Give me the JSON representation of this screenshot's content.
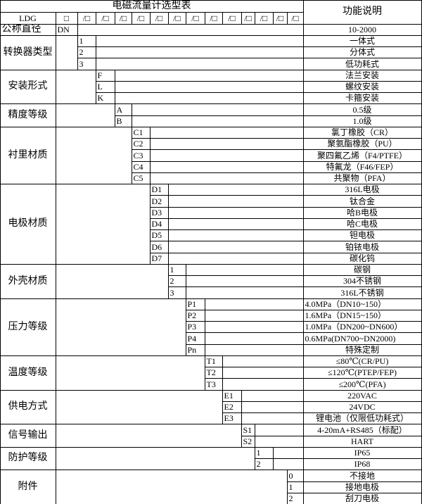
{
  "title": "电磁流量计选型表",
  "desc_header": "功能说明",
  "model_row": {
    "prefix": "LDG",
    "first_box": "□",
    "boxes": [
      "/□",
      "/□",
      "/□",
      "/□",
      "/□",
      "/□",
      "/□",
      "/□",
      "/□",
      "/□",
      "/□",
      "/□",
      "/□"
    ]
  },
  "nominal": {
    "label": "公称直径",
    "code": "DN",
    "desc": "10-2000"
  },
  "groups": [
    {
      "label": "转换器类型",
      "col": 2,
      "options": [
        {
          "code": "1",
          "desc": "一体式"
        },
        {
          "code": "2",
          "desc": "分体式"
        },
        {
          "code": "3",
          "desc": "低功耗式"
        }
      ]
    },
    {
      "label": "安装形式",
      "col": 3,
      "options": [
        {
          "code": "F",
          "desc": "法兰安装"
        },
        {
          "code": "L",
          "desc": "螺纹安装"
        },
        {
          "code": "K",
          "desc": "卡箍安装"
        }
      ]
    },
    {
      "label": "精度等级",
      "col": 4,
      "options": [
        {
          "code": "A",
          "desc": "0.5级"
        },
        {
          "code": "B",
          "desc": "1.0级"
        }
      ]
    },
    {
      "label": "衬里材质",
      "col": 5,
      "options": [
        {
          "code": "C1",
          "desc": "氯丁橡胶（CR）"
        },
        {
          "code": "C2",
          "desc": "聚氨酯橡胶（PU）"
        },
        {
          "code": "C3",
          "desc": "聚四氟乙烯（F4/PTFE）"
        },
        {
          "code": "C4",
          "desc": "特氟龙（F46/FEP）"
        },
        {
          "code": "C5",
          "desc": "共聚物（PFA）"
        }
      ]
    },
    {
      "label": "电极材质",
      "col": 6,
      "options": [
        {
          "code": "D1",
          "desc": "316L电极"
        },
        {
          "code": "D2",
          "desc": "钛合金"
        },
        {
          "code": "D3",
          "desc": "哈B电极"
        },
        {
          "code": "D4",
          "desc": "哈C电极"
        },
        {
          "code": "D5",
          "desc": "钽电极"
        },
        {
          "code": "D6",
          "desc": "铂铱电极"
        },
        {
          "code": "D7",
          "desc": "碳化钨"
        }
      ]
    },
    {
      "label": "外壳材质",
      "col": 7,
      "options": [
        {
          "code": "1",
          "desc": "碳钢"
        },
        {
          "code": "2",
          "desc": "304不锈钢"
        },
        {
          "code": "3",
          "desc": "316L不锈钢"
        }
      ]
    },
    {
      "label": "压力等级",
      "col": 8,
      "options": [
        {
          "code": "P1",
          "desc": "4.0MPa（DN10~150）"
        },
        {
          "code": "P2",
          "desc": "1.6MPa（DN15~150）"
        },
        {
          "code": "P3",
          "desc": "1.0MPa（DN200~DN600）"
        },
        {
          "code": "P4",
          "desc": "0.6MPa(DN700~DN2000)"
        },
        {
          "code": "Pn",
          "desc": "特殊定制"
        }
      ]
    },
    {
      "label": "温度等级",
      "col": 9,
      "options": [
        {
          "code": "T1",
          "desc": "≤80℃(CR/PU)"
        },
        {
          "code": "T2",
          "desc": "≤120℃(PTEP/FEP)"
        },
        {
          "code": "T3",
          "desc": "≤200℃(PFA)"
        }
      ]
    },
    {
      "label": "供电方式",
      "col": 10,
      "options": [
        {
          "code": "E1",
          "desc": "220VAC"
        },
        {
          "code": "E2",
          "desc": "24VDC"
        },
        {
          "code": "E3",
          "desc": "锂电池（仅限低功耗式）"
        }
      ]
    },
    {
      "label": "信号输出",
      "col": 11,
      "options": [
        {
          "code": "S1",
          "desc": "4-20mA+RS485（标配）"
        },
        {
          "code": "S2",
          "desc": "HART"
        }
      ]
    },
    {
      "label": "防护等级",
      "col": 12,
      "options": [
        {
          "code": "1",
          "desc": "IP65"
        },
        {
          "code": "2",
          "desc": "IP68"
        }
      ]
    },
    {
      "label": "附件",
      "col": 14,
      "options": [
        {
          "code": "0",
          "desc": "不接地"
        },
        {
          "code": "1",
          "desc": "接地电极"
        },
        {
          "code": "2",
          "desc": "刮刀电极"
        }
      ]
    }
  ]
}
